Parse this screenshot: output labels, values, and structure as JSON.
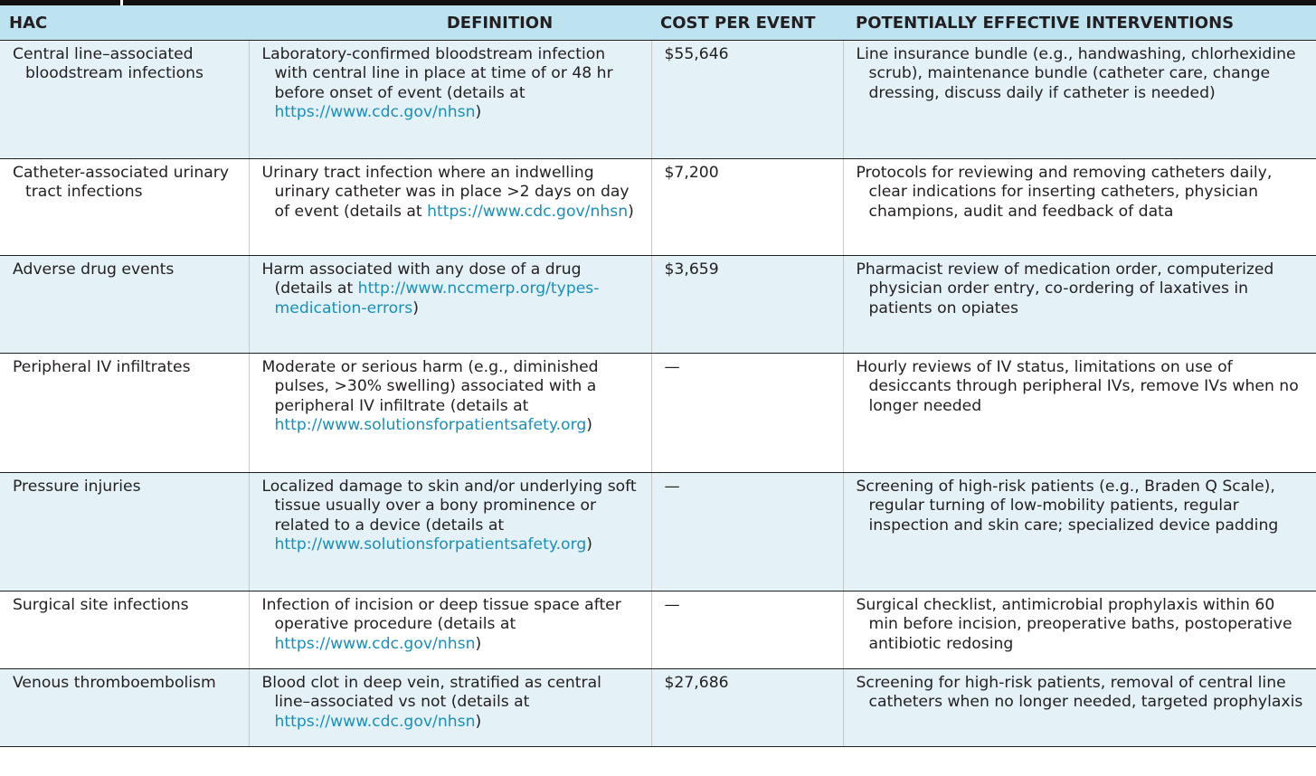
{
  "colors": {
    "header_bg": "#bde3f0",
    "row_shade": "#e4f2f8",
    "link": "#1a8fb7",
    "rule": "#111111"
  },
  "table": {
    "headers": {
      "hac": "HAC",
      "definition": "DEFINITION",
      "cost": "COST PER EVENT",
      "interventions": "POTENTIALLY EFFECTIVE INTERVENTIONS"
    },
    "rows": [
      {
        "hac": "Central line–associated bloodstream infections",
        "definition": "Laboratory-confirmed bloodstream infection with central line in place at time of or 48 hr before onset of event (details at ",
        "link": "https://www.cdc.gov/nhsn",
        "definition_end": ")",
        "cost": "$55,646",
        "interventions": "Line insurance bundle (e.g., handwashing, chlorhexidine scrub), maintenance bundle (catheter care, change dressing, discuss daily if catheter is needed)"
      },
      {
        "hac": "Catheter-associated urinary tract infections",
        "definition": "Urinary tract infection where an indwelling urinary catheter was in place >2 days on day of event (details at ",
        "link": "https://www.cdc.gov/nhsn",
        "definition_end": ")",
        "cost": "$7,200",
        "interventions": "Protocols for reviewing and removing catheters daily, clear indications for inserting catheters, physician champions, audit and feedback of data"
      },
      {
        "hac": "Adverse drug events",
        "definition": "Harm associated with any dose of a drug (details at ",
        "link": "http://www.nccmerp.org/types-medication-errors",
        "definition_end": ")",
        "cost": "$3,659",
        "interventions": "Pharmacist review of medication order, computerized physician order entry, co-ordering of laxatives in patients on opiates"
      },
      {
        "hac": "Peripheral IV infiltrates",
        "definition": "Moderate or serious harm (e.g., diminished pulses, >30% swelling) associated with a peripheral IV infiltrate (details at ",
        "link": "http://www.solutionsforpatientsafety.org",
        "definition_end": ")",
        "cost": "—",
        "interventions": "Hourly reviews of IV status, limitations on use of desiccants through peripheral IVs, remove IVs when no longer needed"
      },
      {
        "hac": "Pressure injuries",
        "definition": "Localized damage to skin and/or underlying soft tissue usually over a bony prominence or related to a device (details at ",
        "link": "http://www.solutionsforpatientsafety.org",
        "definition_end": ")",
        "cost": "—",
        "interventions": "Screening of high-risk patients (e.g., Braden Q Scale), regular turning of low-mobility patients, regular inspection and skin care; specialized device padding"
      },
      {
        "hac": "Surgical site infections",
        "definition": "Infection of incision or deep tissue space after operative procedure (details at ",
        "link": "https://www.cdc.gov/nhsn",
        "definition_end": ")",
        "cost": "—",
        "interventions": "Surgical checklist, antimicrobial prophylaxis within 60 min before incision, preoperative baths, postoperative antibiotic redosing"
      },
      {
        "hac": "Venous thromboembolism",
        "definition": "Blood clot in deep vein, stratified as central line–associated vs not (details at ",
        "link": "https://www.cdc.gov/nhsn",
        "definition_end": ")",
        "cost": "$27,686",
        "interventions": "Screening for high-risk patients, removal of central line catheters when no longer needed, targeted prophylaxis"
      }
    ]
  }
}
